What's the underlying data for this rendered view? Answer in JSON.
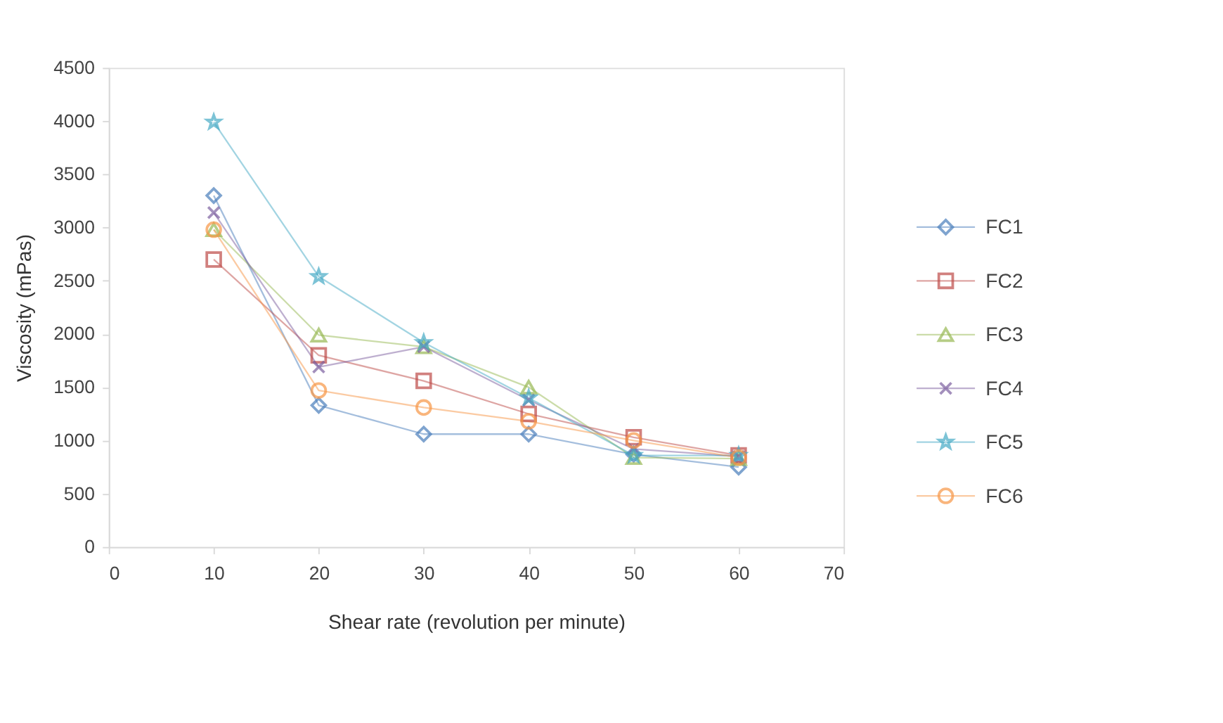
{
  "chart_data": {
    "type": "line",
    "xlabel": "Shear rate (revolution per minute)",
    "ylabel": "Viscosity (mPas)",
    "x": [
      10,
      20,
      30,
      40,
      50,
      60
    ],
    "series": [
      {
        "name": "FC1",
        "color": "#4a7ebb",
        "marker": "diamond",
        "values": [
          3300,
          1330,
          1060,
          1060,
          870,
          750
        ]
      },
      {
        "name": "FC2",
        "color": "#be4b48",
        "marker": "square",
        "values": [
          2700,
          1800,
          1560,
          1250,
          1030,
          860
        ]
      },
      {
        "name": "FC3",
        "color": "#98b954",
        "marker": "triangle",
        "values": [
          2980,
          1990,
          1880,
          1500,
          840,
          830
        ]
      },
      {
        "name": "FC4",
        "color": "#7d60a0",
        "marker": "cross",
        "values": [
          3140,
          1690,
          1880,
          1380,
          920,
          850
        ]
      },
      {
        "name": "FC5",
        "color": "#46aac5",
        "marker": "star",
        "values": [
          3990,
          2540,
          1920,
          1400,
          860,
          860
        ]
      },
      {
        "name": "FC6",
        "color": "#f79646",
        "marker": "circle",
        "values": [
          2980,
          1470,
          1310,
          1180,
          1000,
          840
        ]
      }
    ],
    "xlim": [
      0,
      70
    ],
    "xticks": [
      0,
      10,
      20,
      30,
      40,
      50,
      60,
      70
    ],
    "ylim": [
      0,
      4500
    ],
    "yticks": [
      0,
      500,
      1000,
      1500,
      2000,
      2500,
      3000,
      3500,
      4000,
      4500
    ],
    "grid": false,
    "legend": "right",
    "line_style": "solid"
  }
}
